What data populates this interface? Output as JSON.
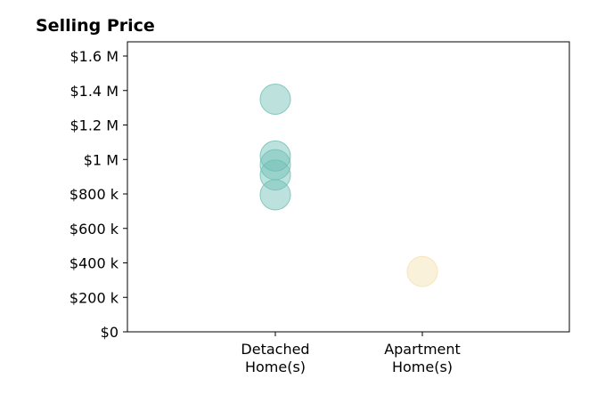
{
  "chart_data": {
    "type": "scatter",
    "title": "Selling Price",
    "xlabel": "",
    "ylabel": "",
    "categories": [
      "Detached\nHome(s)",
      "Apartment\nHome(s)"
    ],
    "ylim": [
      0,
      1700000
    ],
    "yticks": [
      0,
      200000,
      400000,
      600000,
      800000,
      1000000,
      1200000,
      1400000,
      1600000
    ],
    "ytick_labels": [
      "$0",
      "$200 k",
      "$400 k",
      "$600 k",
      "$800 k",
      "$1 M",
      "$1.2 M",
      "$1.4 M",
      "$1.6 M"
    ],
    "grid": false,
    "legend": "none",
    "series": [
      {
        "category": "Detached\nHome(s)",
        "color": "#6cbfb3",
        "values": [
          1350000,
          1020000,
          970000,
          910000,
          795000
        ]
      },
      {
        "category": "Apartment\nHome(s)",
        "color": "#f5dfae",
        "values": [
          350000
        ]
      }
    ]
  }
}
